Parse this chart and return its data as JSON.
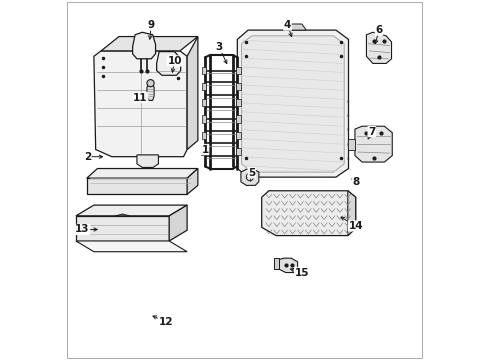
{
  "bg_color": "#ffffff",
  "line_color": "#1a1a1a",
  "figsize": [
    4.89,
    3.6
  ],
  "dpi": 100,
  "label_positions": {
    "1": [
      0.39,
      0.415,
      0.375,
      0.44
    ],
    "2": [
      0.062,
      0.435,
      0.115,
      0.435
    ],
    "3": [
      0.43,
      0.13,
      0.455,
      0.185
    ],
    "4": [
      0.62,
      0.068,
      0.635,
      0.11
    ],
    "5": [
      0.52,
      0.48,
      0.497,
      0.488
    ],
    "6": [
      0.875,
      0.082,
      0.862,
      0.13
    ],
    "7": [
      0.855,
      0.365,
      0.84,
      0.395
    ],
    "8": [
      0.81,
      0.505,
      0.79,
      0.49
    ],
    "9": [
      0.24,
      0.068,
      0.235,
      0.118
    ],
    "10": [
      0.305,
      0.168,
      0.297,
      0.21
    ],
    "11": [
      0.21,
      0.27,
      0.24,
      0.272
    ],
    "12": [
      0.28,
      0.895,
      0.235,
      0.875
    ],
    "13": [
      0.048,
      0.638,
      0.1,
      0.638
    ],
    "14": [
      0.81,
      0.628,
      0.76,
      0.598
    ],
    "15": [
      0.66,
      0.758,
      0.618,
      0.745
    ]
  }
}
